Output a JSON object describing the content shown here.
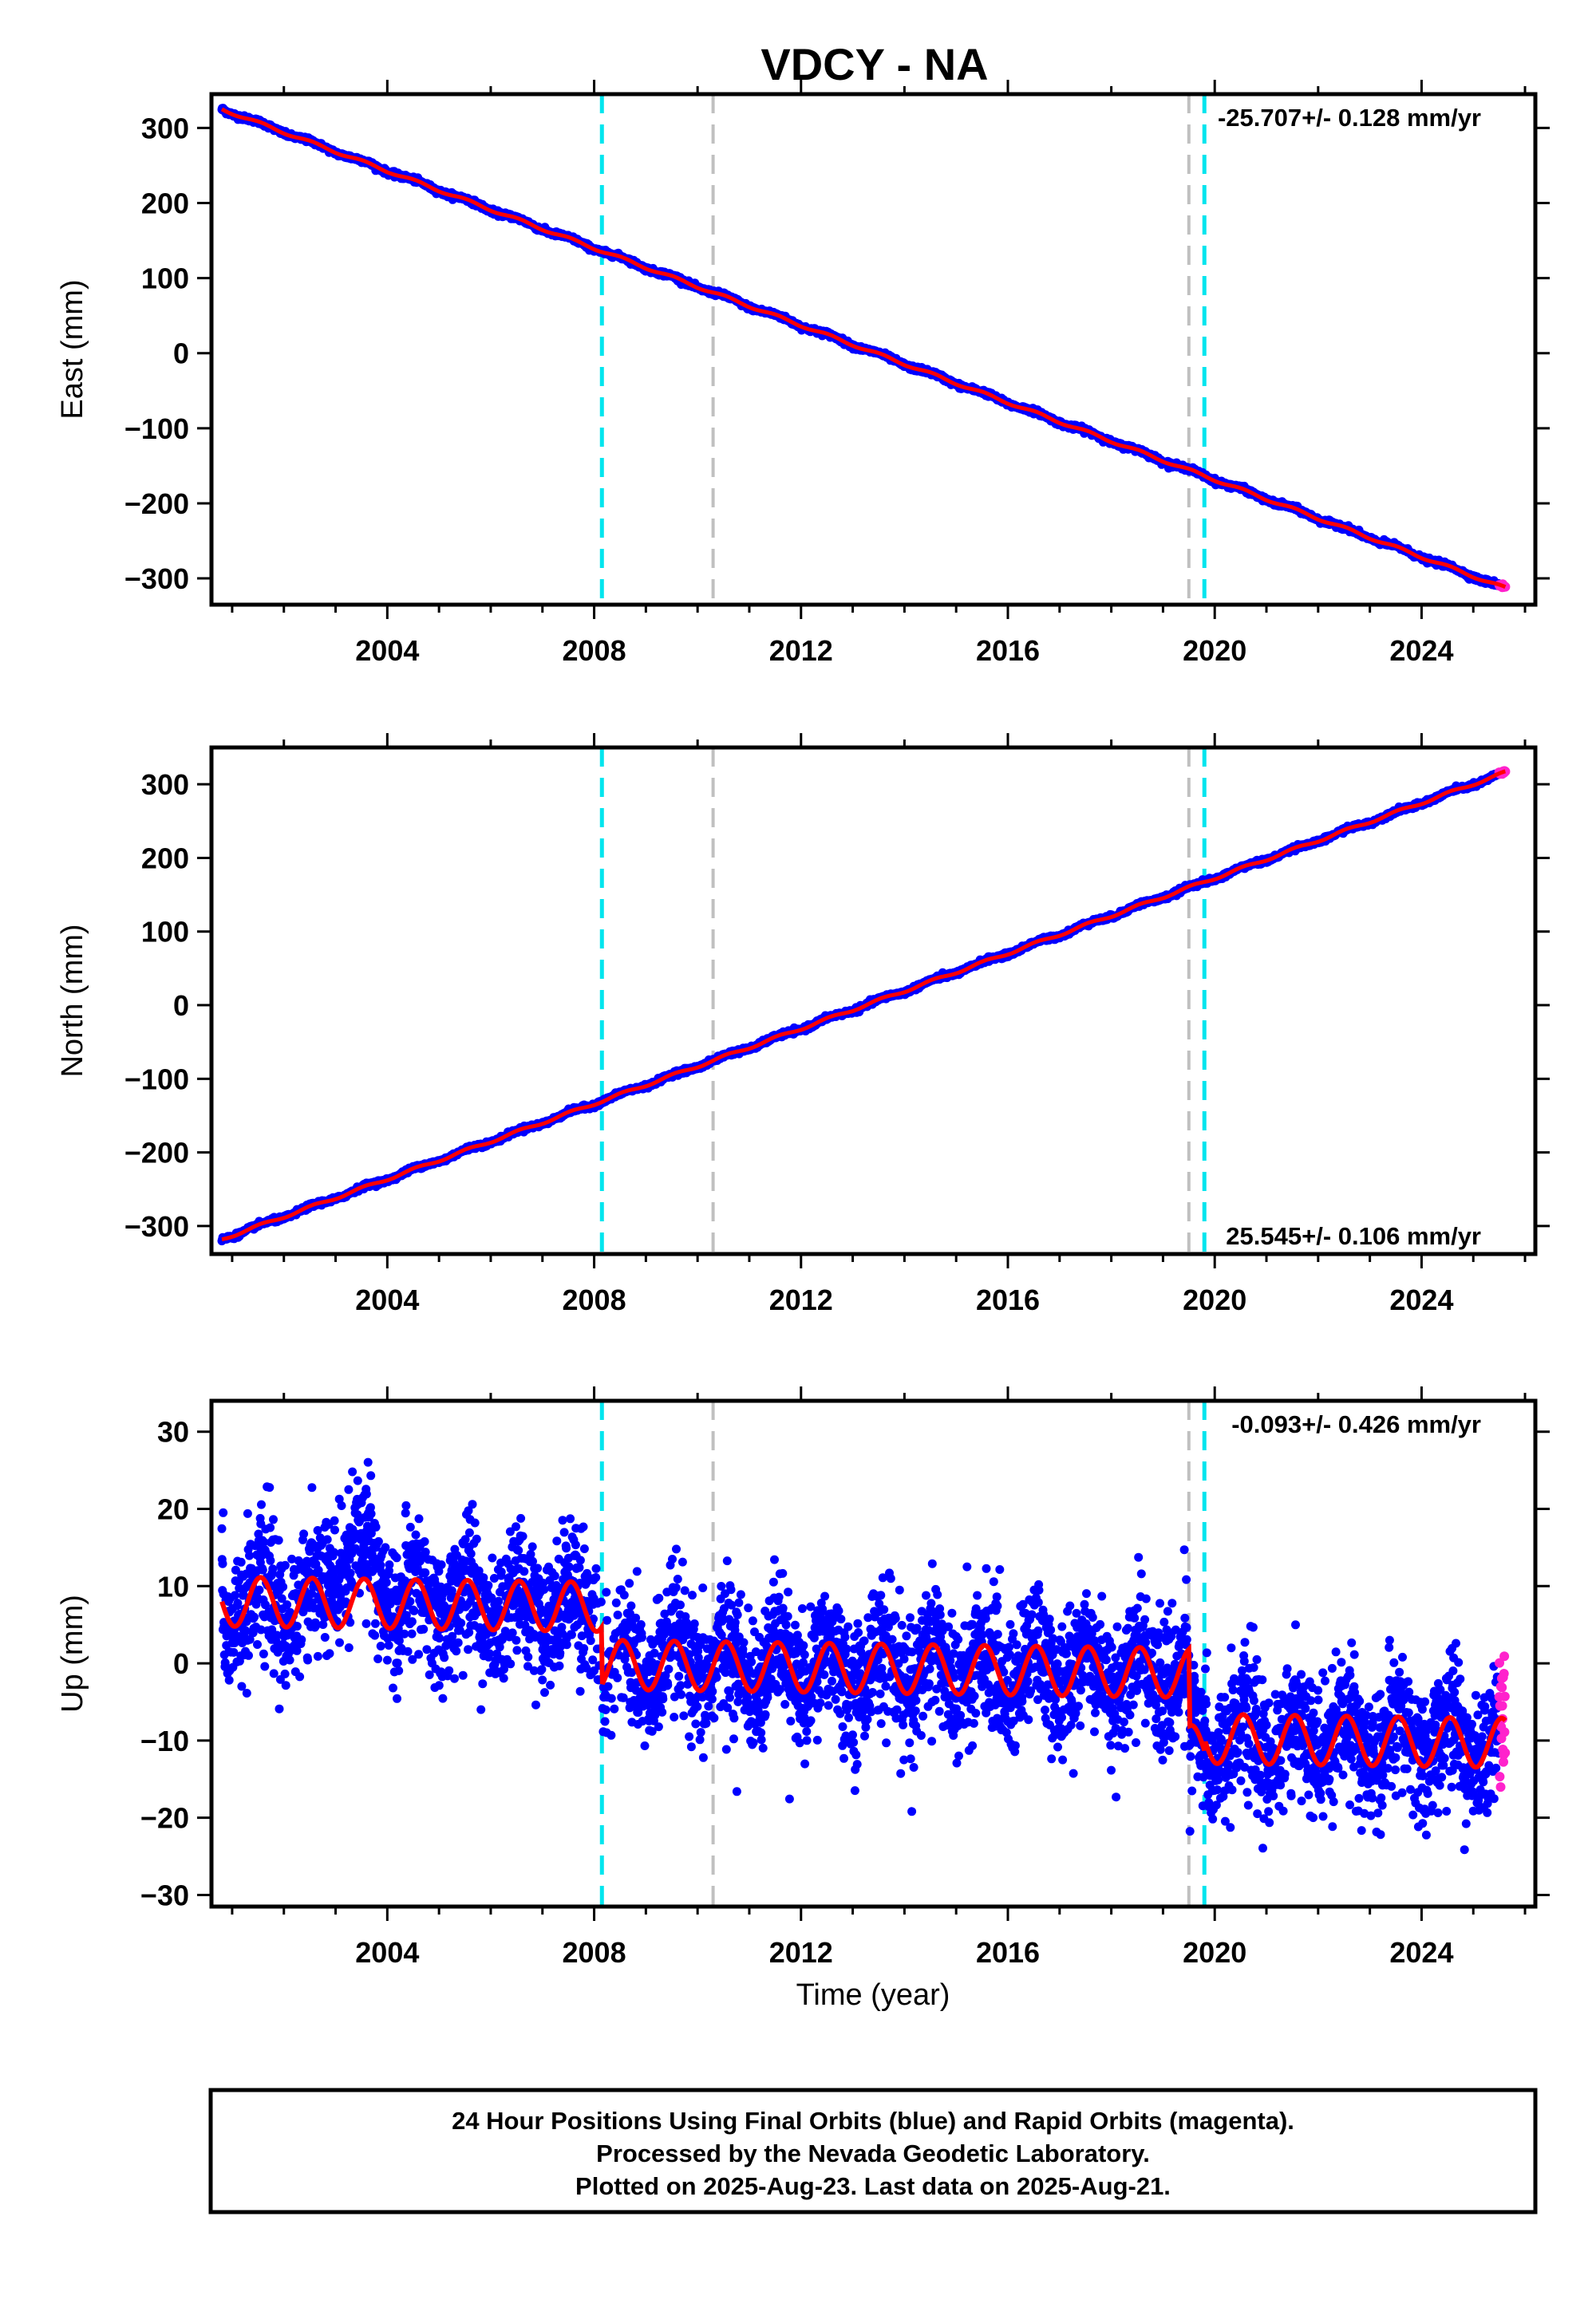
{
  "chart_data": {
    "title": "VDCY - NA",
    "xlabel": "Time (year)",
    "x_ticks": [
      2004,
      2008,
      2012,
      2016,
      2020,
      2024
    ],
    "xlim": [
      2000.6,
      2026.2
    ],
    "colors": {
      "final_orbits": "#0000ff",
      "rapid_orbits": "#ff22cc",
      "model": "#ff0000",
      "equipment_change": "#00e5ee",
      "other_event": "#c0c0c0"
    },
    "event_lines": [
      {
        "year": 2008.15,
        "type": "equipment_change"
      },
      {
        "year": 2010.3,
        "type": "other_event"
      },
      {
        "year": 2019.5,
        "type": "other_event"
      },
      {
        "year": 2019.8,
        "type": "equipment_change"
      }
    ],
    "panels": [
      {
        "component": "east",
        "type": "scatter",
        "ylabel": "East (mm)",
        "ylim": [
          -335,
          345
        ],
        "y_ticks": [
          300,
          200,
          100,
          0,
          -100,
          -200,
          -300
        ],
        "rate_label": "-25.707+/- 0.128 mm/yr",
        "rate_label_position": "top-right",
        "start_year": 2000.8,
        "end_year": 2025.62,
        "start_value": 325,
        "rate": -25.707,
        "seasonal_amplitude": 1.8,
        "noise": 1.6,
        "steps": [],
        "rapid_start": 2025.5
      },
      {
        "component": "north",
        "type": "scatter",
        "ylabel": "North (mm)",
        "ylim": [
          -338,
          350
        ],
        "y_ticks": [
          300,
          200,
          100,
          0,
          -100,
          -200,
          -300
        ],
        "rate_label": "25.545+/- 0.106 mm/yr",
        "rate_label_position": "bottom-right",
        "start_year": 2000.8,
        "end_year": 2025.62,
        "start_value": -318,
        "rate": 25.545,
        "seasonal_amplitude": 1.8,
        "noise": 1.5,
        "steps": [],
        "rapid_start": 2025.5
      },
      {
        "component": "up",
        "type": "scatter",
        "ylabel": "Up (mm)",
        "ylim": [
          -31.5,
          34
        ],
        "y_ticks": [
          30,
          20,
          10,
          0,
          -10,
          -20,
          -30
        ],
        "rate_label": "-0.093+/- 0.426 mm/yr",
        "rate_label_position": "top-right",
        "start_year": 2000.8,
        "end_year": 2025.62,
        "start_value": 8,
        "rate": -0.093,
        "seasonal_amplitude": 3.2,
        "noise": 4.2,
        "steps": [
          {
            "year": 2008.15,
            "offset": -7.5
          },
          {
            "year": 2019.5,
            "offset": -10
          },
          {
            "year": 2019.8,
            "offset": 1.5
          }
        ],
        "rapid_start": 2025.5
      }
    ]
  },
  "footer": {
    "line1": "24 Hour Positions Using Final Orbits (blue) and Rapid Orbits (magenta).",
    "line2": "Processed by the Nevada Geodetic Laboratory.",
    "line3": "Plotted on 2025-Aug-23. Last data on 2025-Aug-21."
  }
}
